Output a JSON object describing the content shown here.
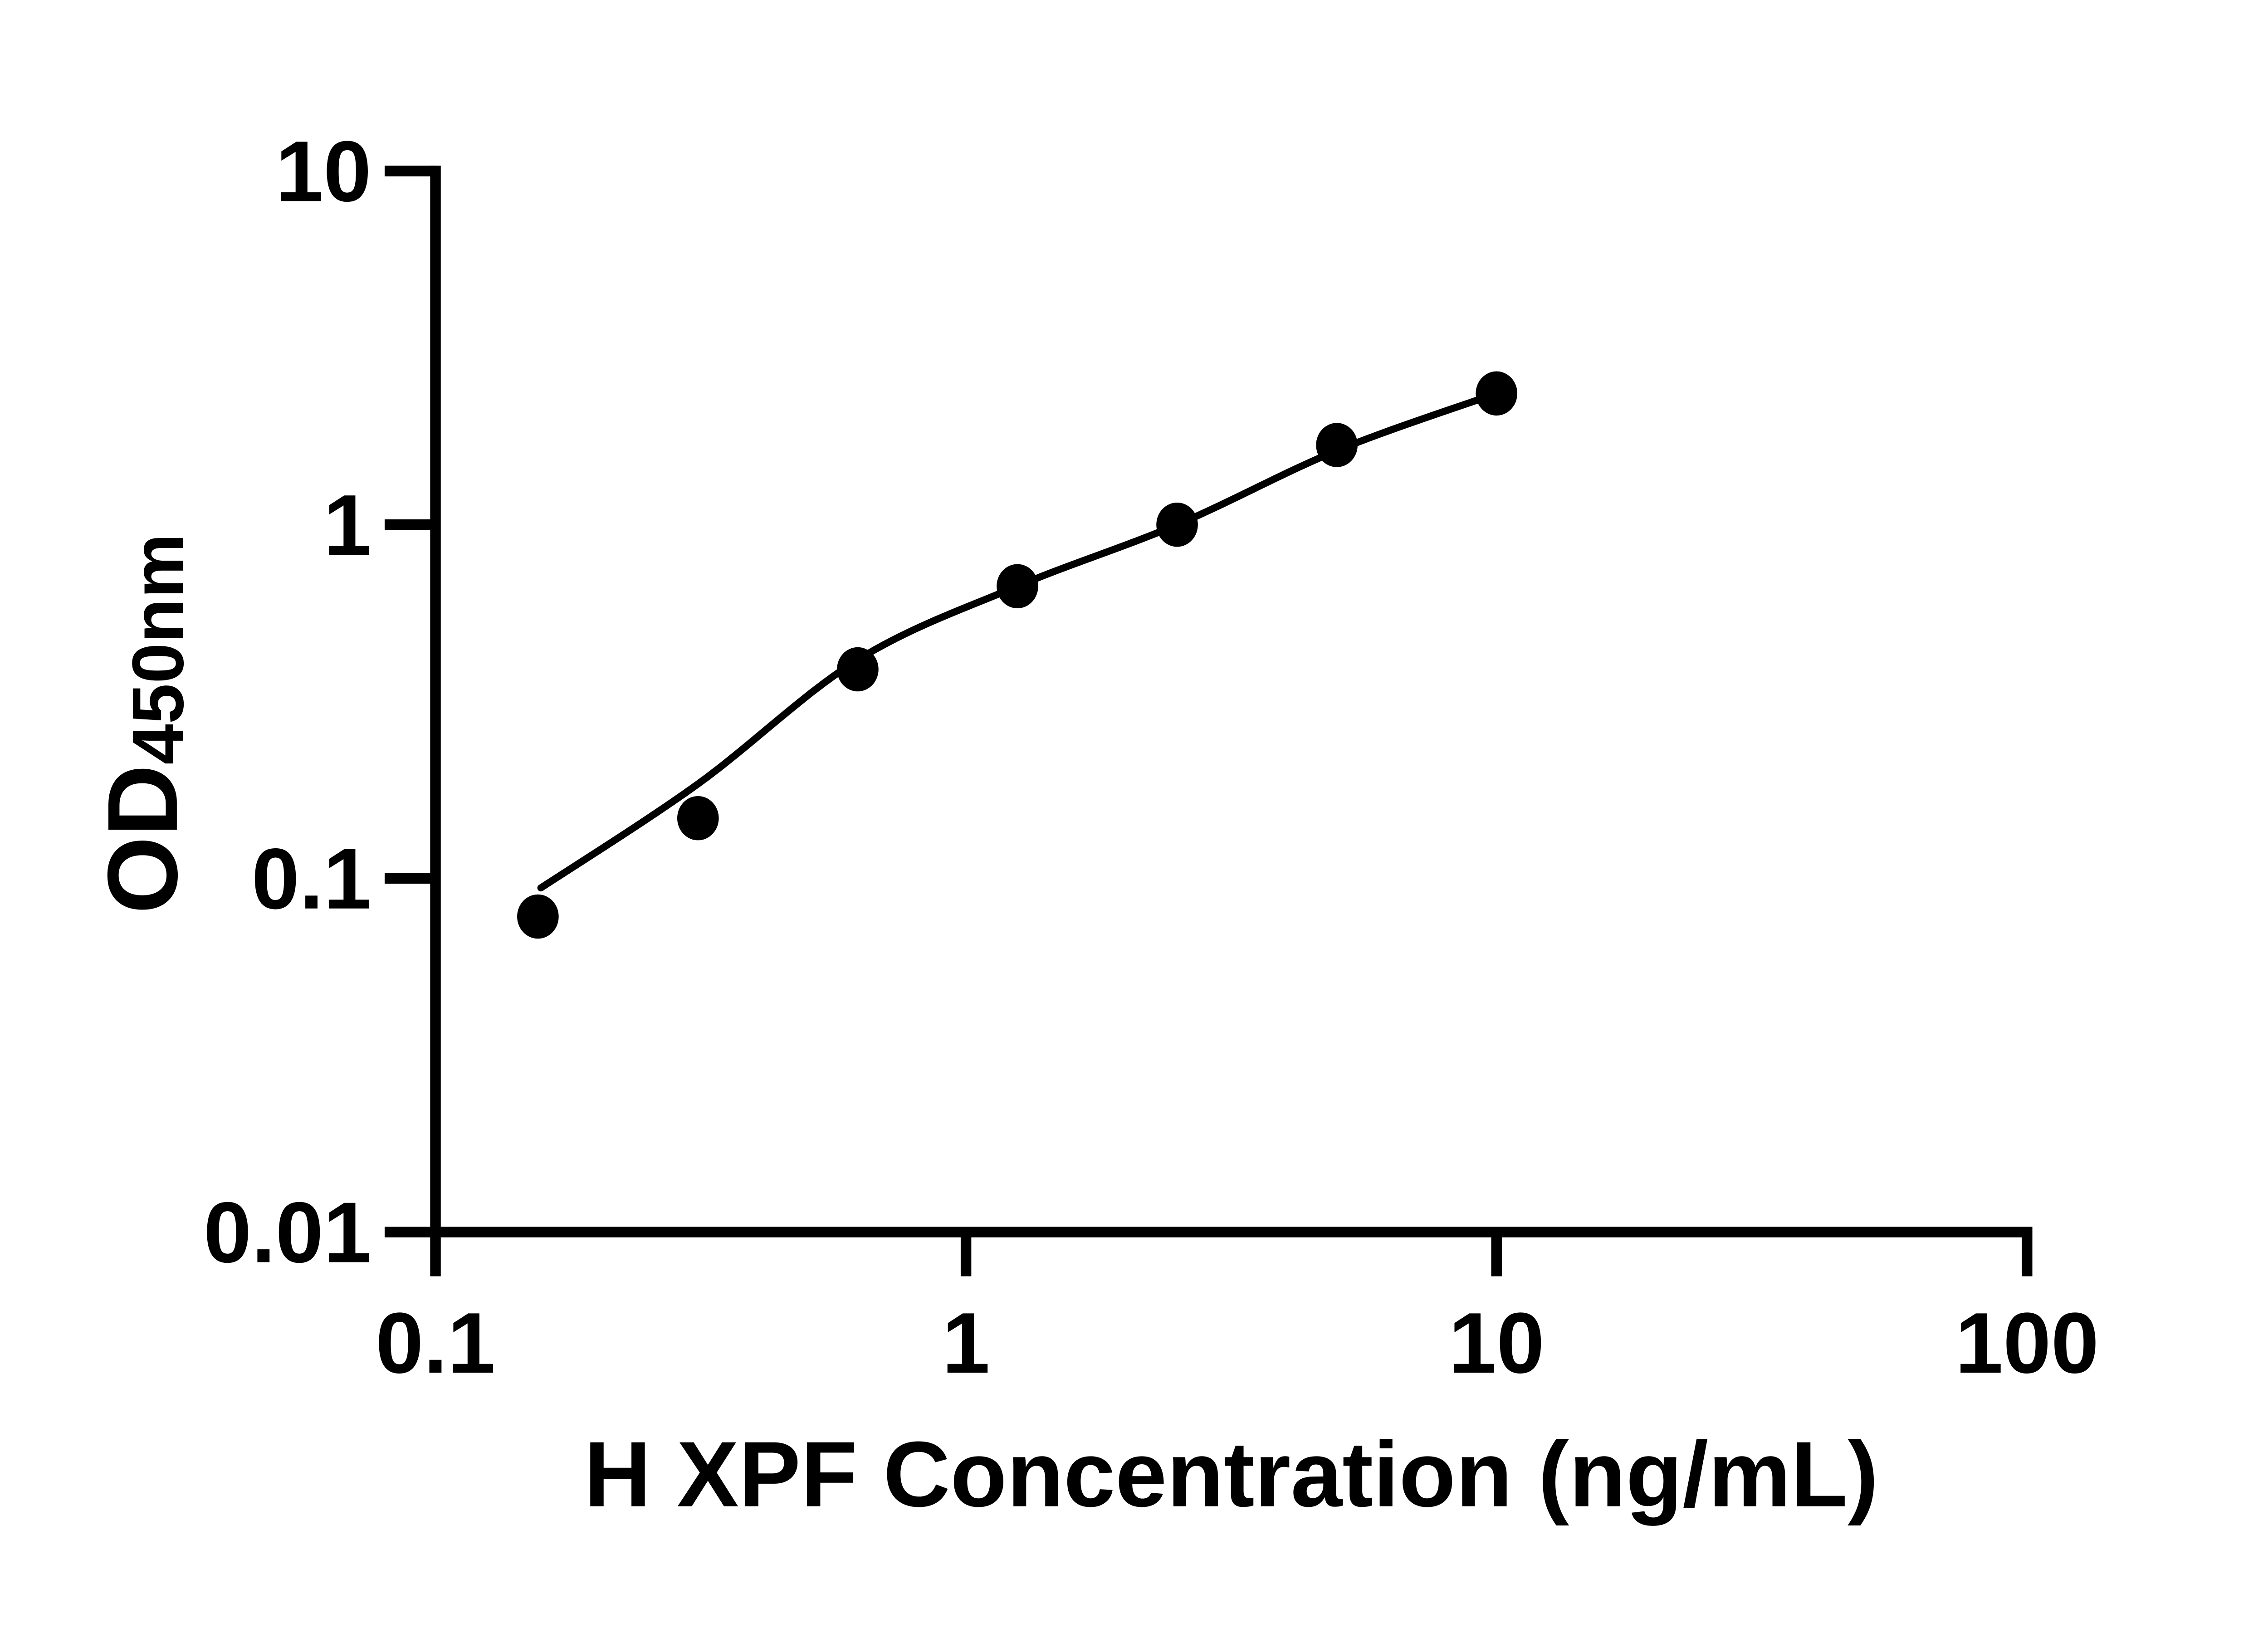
{
  "figure": {
    "background_color": "#ffffff",
    "ink_color": "#000000"
  },
  "chart_data": {
    "type": "scatter",
    "title": "",
    "xlabel": "H XPF Concentration (ng/mL)",
    "ylabel_main": "OD",
    "ylabel_sub": "450nm",
    "x_scale": "log",
    "y_scale": "log",
    "xlim": [
      0.1,
      100
    ],
    "ylim": [
      0.01,
      10
    ],
    "grid": false,
    "legend_position": "none",
    "x_ticks": [
      {
        "value": 0.1,
        "label": "0.1"
      },
      {
        "value": 1,
        "label": "1"
      },
      {
        "value": 10,
        "label": "10"
      },
      {
        "value": 100,
        "label": "100"
      }
    ],
    "y_ticks": [
      {
        "value": 10,
        "label": "10"
      },
      {
        "value": 1,
        "label": "1"
      },
      {
        "value": 0.1,
        "label": "0.1"
      },
      {
        "value": 0.01,
        "label": "0.01"
      }
    ],
    "series": [
      {
        "name": "H XPF standard points",
        "marker": "filled-circle",
        "color": "#000000",
        "x": [
          0.156,
          0.3125,
          0.625,
          1.25,
          2.5,
          5,
          10
        ],
        "y": [
          0.078,
          0.148,
          0.39,
          0.67,
          1.0,
          1.68,
          2.35
        ]
      }
    ],
    "fit_curve": {
      "name": "fitted standard curve",
      "color": "#000000",
      "points_xy": [
        [
          0.158,
          0.094
        ],
        [
          0.3125,
          0.185
        ],
        [
          0.625,
          0.415
        ],
        [
          1.25,
          0.67
        ],
        [
          2.5,
          1.0
        ],
        [
          5,
          1.62
        ],
        [
          10,
          2.35
        ]
      ]
    }
  }
}
